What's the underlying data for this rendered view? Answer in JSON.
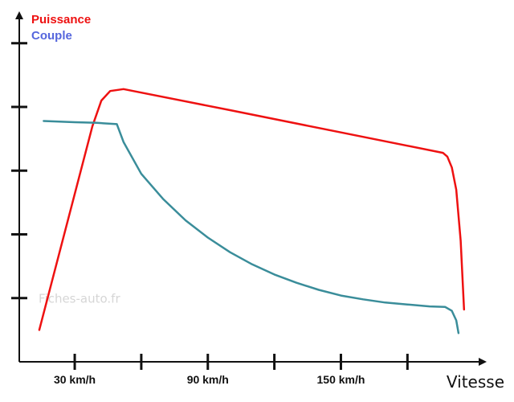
{
  "chart_data": {
    "type": "line",
    "title": "",
    "xlabel": "Vitesse",
    "ylabel": "",
    "x_ticks": [
      {
        "value": 30,
        "label": "30 km/h"
      },
      {
        "value": 60,
        "label": ""
      },
      {
        "value": 90,
        "label": "90 km/h"
      },
      {
        "value": 120,
        "label": ""
      },
      {
        "value": 150,
        "label": "150 km/h"
      },
      {
        "value": 180,
        "label": ""
      }
    ],
    "y_ticks": [
      1,
      2,
      3,
      4,
      5
    ],
    "xlim": [
      5,
      215
    ],
    "ylim": [
      0,
      5.3
    ],
    "grid": false,
    "legend_position": "top-left",
    "series": [
      {
        "name": "Puissance",
        "color": "#ee1111",
        "points": [
          [
            14,
            0.5
          ],
          [
            38,
            3.7
          ],
          [
            42,
            4.1
          ],
          [
            46,
            4.25
          ],
          [
            52,
            4.28
          ],
          [
            100,
            3.95
          ],
          [
            150,
            3.6
          ],
          [
            196,
            3.28
          ],
          [
            198,
            3.22
          ],
          [
            200,
            3.05
          ],
          [
            202,
            2.7
          ],
          [
            204,
            1.9
          ],
          [
            205.5,
            0.82
          ]
        ]
      },
      {
        "name": "Couple",
        "color": "#5566dd",
        "line_color": "#3a8d9a",
        "points": [
          [
            16,
            3.78
          ],
          [
            30,
            3.76
          ],
          [
            40,
            3.75
          ],
          [
            49,
            3.73
          ],
          [
            52,
            3.45
          ],
          [
            60,
            2.95
          ],
          [
            70,
            2.55
          ],
          [
            80,
            2.22
          ],
          [
            90,
            1.95
          ],
          [
            100,
            1.72
          ],
          [
            110,
            1.53
          ],
          [
            120,
            1.37
          ],
          [
            130,
            1.24
          ],
          [
            140,
            1.13
          ],
          [
            150,
            1.04
          ],
          [
            160,
            0.98
          ],
          [
            170,
            0.93
          ],
          [
            180,
            0.9
          ],
          [
            190,
            0.87
          ],
          [
            197,
            0.86
          ],
          [
            200,
            0.8
          ],
          [
            202,
            0.65
          ],
          [
            203,
            0.45
          ]
        ]
      }
    ],
    "watermark": "Fiches-auto.fr"
  }
}
